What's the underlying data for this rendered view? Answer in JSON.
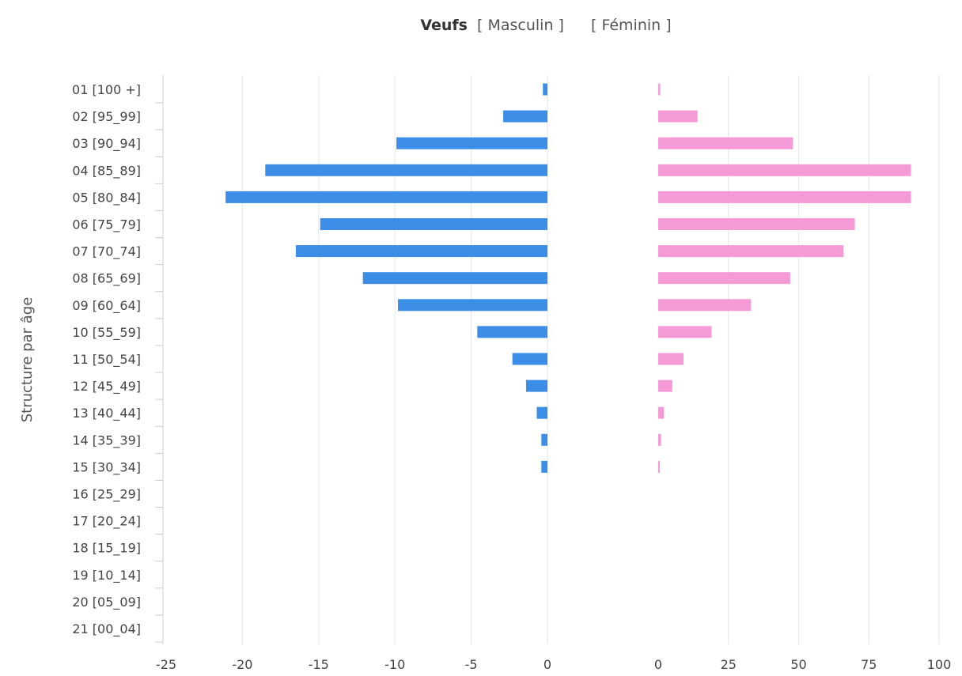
{
  "chart_data": {
    "type": "bar",
    "title": "Veufs",
    "legend": [
      {
        "label": "[ Masculin ]",
        "color": "#3b8de6"
      },
      {
        "label": "[ Féminin ]",
        "color": "#f59ad6"
      }
    ],
    "ylabel": "Structure par âge",
    "categories": [
      "01 [100 +]",
      "02 [95_99]",
      "03 [90_94]",
      "04 [85_89]",
      "05 [80_84]",
      "06 [75_79]",
      "07 [70_74]",
      "08 [65_69]",
      "09 [60_64]",
      "10 [55_59]",
      "11 [50_54]",
      "12 [45_49]",
      "13 [40_44]",
      "14 [35_39]",
      "15 [30_34]",
      "16 [25_29]",
      "17 [20_24]",
      "18 [15_19]",
      "19 [10_14]",
      "20 [05_09]",
      "21 [00_04]"
    ],
    "series": [
      {
        "name": "Masculin",
        "color": "#3b8de6",
        "values": [
          -0.3,
          -2.9,
          -9.9,
          -18.5,
          -21.1,
          -14.9,
          -16.5,
          -12.1,
          -9.8,
          -4.6,
          -2.3,
          -1.4,
          -0.7,
          -0.4,
          -0.4,
          0,
          0,
          0,
          0,
          0,
          0
        ],
        "xlim": [
          -25,
          0
        ],
        "ticks": [
          "-25",
          "-20",
          "-15",
          "-10",
          "-5",
          "0"
        ]
      },
      {
        "name": "Féminin",
        "color": "#f59ad6",
        "values": [
          0.7,
          14,
          48,
          90,
          90,
          70,
          66,
          47,
          33,
          19,
          9,
          5,
          2,
          1,
          0.3,
          0,
          0,
          0,
          0,
          0,
          0
        ],
        "xlim": [
          0,
          100
        ],
        "ticks": [
          "0",
          "25",
          "50",
          "75",
          "100"
        ]
      }
    ],
    "grid": true
  }
}
